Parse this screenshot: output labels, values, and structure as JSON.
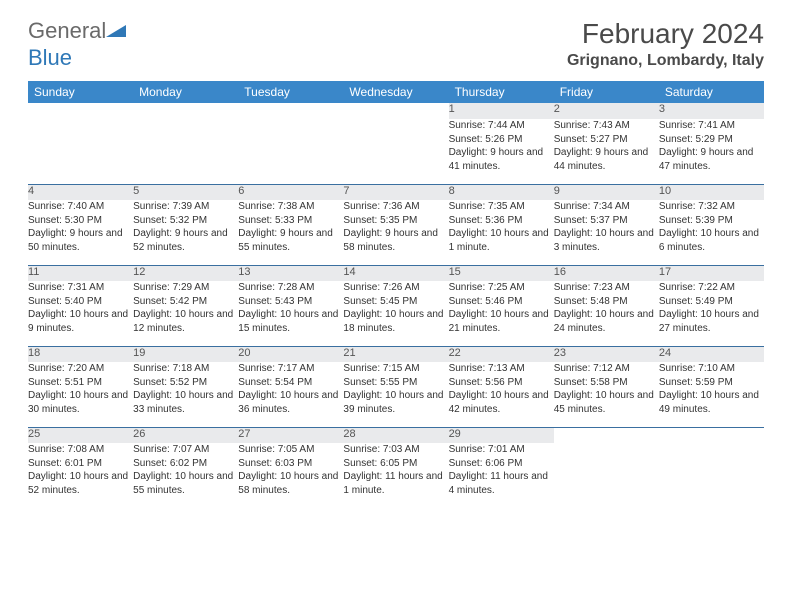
{
  "logo": {
    "text1": "General",
    "text2": "Blue"
  },
  "title": "February 2024",
  "location": "Grignano, Lombardy, Italy",
  "header_bg": "#3a87c9",
  "border_color": "#3a6fa0",
  "daynum_bg": "#e9eaec",
  "weekdays": [
    "Sunday",
    "Monday",
    "Tuesday",
    "Wednesday",
    "Thursday",
    "Friday",
    "Saturday"
  ],
  "weeks": [
    {
      "days": [
        null,
        null,
        null,
        null,
        {
          "n": "1",
          "sunrise": "Sunrise: 7:44 AM",
          "sunset": "Sunset: 5:26 PM",
          "daylight": "Daylight: 9 hours and 41 minutes."
        },
        {
          "n": "2",
          "sunrise": "Sunrise: 7:43 AM",
          "sunset": "Sunset: 5:27 PM",
          "daylight": "Daylight: 9 hours and 44 minutes."
        },
        {
          "n": "3",
          "sunrise": "Sunrise: 7:41 AM",
          "sunset": "Sunset: 5:29 PM",
          "daylight": "Daylight: 9 hours and 47 minutes."
        }
      ]
    },
    {
      "days": [
        {
          "n": "4",
          "sunrise": "Sunrise: 7:40 AM",
          "sunset": "Sunset: 5:30 PM",
          "daylight": "Daylight: 9 hours and 50 minutes."
        },
        {
          "n": "5",
          "sunrise": "Sunrise: 7:39 AM",
          "sunset": "Sunset: 5:32 PM",
          "daylight": "Daylight: 9 hours and 52 minutes."
        },
        {
          "n": "6",
          "sunrise": "Sunrise: 7:38 AM",
          "sunset": "Sunset: 5:33 PM",
          "daylight": "Daylight: 9 hours and 55 minutes."
        },
        {
          "n": "7",
          "sunrise": "Sunrise: 7:36 AM",
          "sunset": "Sunset: 5:35 PM",
          "daylight": "Daylight: 9 hours and 58 minutes."
        },
        {
          "n": "8",
          "sunrise": "Sunrise: 7:35 AM",
          "sunset": "Sunset: 5:36 PM",
          "daylight": "Daylight: 10 hours and 1 minute."
        },
        {
          "n": "9",
          "sunrise": "Sunrise: 7:34 AM",
          "sunset": "Sunset: 5:37 PM",
          "daylight": "Daylight: 10 hours and 3 minutes."
        },
        {
          "n": "10",
          "sunrise": "Sunrise: 7:32 AM",
          "sunset": "Sunset: 5:39 PM",
          "daylight": "Daylight: 10 hours and 6 minutes."
        }
      ]
    },
    {
      "days": [
        {
          "n": "11",
          "sunrise": "Sunrise: 7:31 AM",
          "sunset": "Sunset: 5:40 PM",
          "daylight": "Daylight: 10 hours and 9 minutes."
        },
        {
          "n": "12",
          "sunrise": "Sunrise: 7:29 AM",
          "sunset": "Sunset: 5:42 PM",
          "daylight": "Daylight: 10 hours and 12 minutes."
        },
        {
          "n": "13",
          "sunrise": "Sunrise: 7:28 AM",
          "sunset": "Sunset: 5:43 PM",
          "daylight": "Daylight: 10 hours and 15 minutes."
        },
        {
          "n": "14",
          "sunrise": "Sunrise: 7:26 AM",
          "sunset": "Sunset: 5:45 PM",
          "daylight": "Daylight: 10 hours and 18 minutes."
        },
        {
          "n": "15",
          "sunrise": "Sunrise: 7:25 AM",
          "sunset": "Sunset: 5:46 PM",
          "daylight": "Daylight: 10 hours and 21 minutes."
        },
        {
          "n": "16",
          "sunrise": "Sunrise: 7:23 AM",
          "sunset": "Sunset: 5:48 PM",
          "daylight": "Daylight: 10 hours and 24 minutes."
        },
        {
          "n": "17",
          "sunrise": "Sunrise: 7:22 AM",
          "sunset": "Sunset: 5:49 PM",
          "daylight": "Daylight: 10 hours and 27 minutes."
        }
      ]
    },
    {
      "days": [
        {
          "n": "18",
          "sunrise": "Sunrise: 7:20 AM",
          "sunset": "Sunset: 5:51 PM",
          "daylight": "Daylight: 10 hours and 30 minutes."
        },
        {
          "n": "19",
          "sunrise": "Sunrise: 7:18 AM",
          "sunset": "Sunset: 5:52 PM",
          "daylight": "Daylight: 10 hours and 33 minutes."
        },
        {
          "n": "20",
          "sunrise": "Sunrise: 7:17 AM",
          "sunset": "Sunset: 5:54 PM",
          "daylight": "Daylight: 10 hours and 36 minutes."
        },
        {
          "n": "21",
          "sunrise": "Sunrise: 7:15 AM",
          "sunset": "Sunset: 5:55 PM",
          "daylight": "Daylight: 10 hours and 39 minutes."
        },
        {
          "n": "22",
          "sunrise": "Sunrise: 7:13 AM",
          "sunset": "Sunset: 5:56 PM",
          "daylight": "Daylight: 10 hours and 42 minutes."
        },
        {
          "n": "23",
          "sunrise": "Sunrise: 7:12 AM",
          "sunset": "Sunset: 5:58 PM",
          "daylight": "Daylight: 10 hours and 45 minutes."
        },
        {
          "n": "24",
          "sunrise": "Sunrise: 7:10 AM",
          "sunset": "Sunset: 5:59 PM",
          "daylight": "Daylight: 10 hours and 49 minutes."
        }
      ]
    },
    {
      "days": [
        {
          "n": "25",
          "sunrise": "Sunrise: 7:08 AM",
          "sunset": "Sunset: 6:01 PM",
          "daylight": "Daylight: 10 hours and 52 minutes."
        },
        {
          "n": "26",
          "sunrise": "Sunrise: 7:07 AM",
          "sunset": "Sunset: 6:02 PM",
          "daylight": "Daylight: 10 hours and 55 minutes."
        },
        {
          "n": "27",
          "sunrise": "Sunrise: 7:05 AM",
          "sunset": "Sunset: 6:03 PM",
          "daylight": "Daylight: 10 hours and 58 minutes."
        },
        {
          "n": "28",
          "sunrise": "Sunrise: 7:03 AM",
          "sunset": "Sunset: 6:05 PM",
          "daylight": "Daylight: 11 hours and 1 minute."
        },
        {
          "n": "29",
          "sunrise": "Sunrise: 7:01 AM",
          "sunset": "Sunset: 6:06 PM",
          "daylight": "Daylight: 11 hours and 4 minutes."
        },
        null,
        null
      ]
    }
  ]
}
